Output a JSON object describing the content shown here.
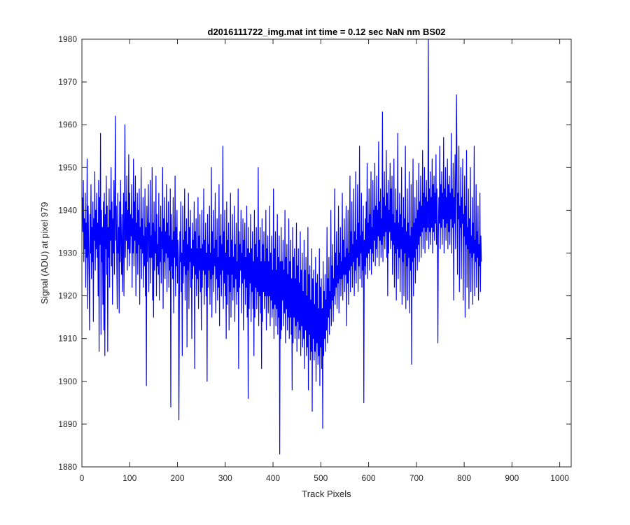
{
  "chart_data": {
    "type": "line",
    "title": "d2016111722_img.mat int time = 0.12 sec  NaN nm BS02",
    "xlabel": "Track Pixels",
    "ylabel": "Signal (ADU) at pixel 979",
    "xlim": [
      0,
      1024
    ],
    "ylim": [
      1880,
      1980
    ],
    "xticks": [
      0,
      100,
      200,
      300,
      400,
      500,
      600,
      700,
      800,
      900,
      1000
    ],
    "yticks": [
      1880,
      1890,
      1900,
      1910,
      1920,
      1930,
      1940,
      1950,
      1960,
      1970,
      1980
    ],
    "grid": false,
    "line_color": "#0000ff",
    "series": [
      {
        "name": "",
        "x_start": 1,
        "x_step": 1,
        "values": [
          1943,
          1935,
          1947,
          1928,
          1938,
          1931,
          1944,
          1922,
          1937,
          1929,
          1952,
          1917,
          1941,
          1933,
          1925,
          1912,
          1939,
          1930,
          1946,
          1924,
          1936,
          1928,
          1942,
          1914,
          1938,
          1933,
          1949,
          1926,
          1940,
          1931,
          1944,
          1929,
          1937,
          1920,
          1947,
          1907,
          1943,
          1932,
          1958,
          1911,
          1940,
          1928,
          1936,
          1918,
          1942,
          1912,
          1944,
          1906,
          1939,
          1931,
          1948,
          1925,
          1941,
          1907,
          1936,
          1929,
          1945,
          1922,
          1940,
          1933,
          1950,
          1927,
          1942,
          1918,
          1938,
          1930,
          1947,
          1925,
          1939,
          1962,
          1933,
          1941,
          1928,
          1917,
          1944,
          1930,
          1936,
          1916,
          1942,
          1928,
          1947,
          1933,
          1925,
          1939,
          1921,
          1931,
          1944,
          1920,
          1935,
          1960,
          1929,
          1942,
          1933,
          1948,
          1926,
          1940,
          1931,
          1953,
          1927,
          1944,
          1930,
          1939,
          1934,
          1946,
          1922,
          1938,
          1930,
          1952,
          1927,
          1942,
          1933,
          1948,
          1920,
          1937,
          1930,
          1944,
          1925,
          1940,
          1932,
          1945,
          1918,
          1936,
          1931,
          1950,
          1924,
          1938,
          1930,
          1943,
          1922,
          1934,
          1927,
          1945,
          1920,
          1936,
          1899,
          1941,
          1928,
          1935,
          1946,
          1921,
          1937,
          1929,
          1947,
          1923,
          1934,
          1929,
          1950,
          1919,
          1937,
          1915,
          1942,
          1926,
          1935,
          1930,
          1948,
          1920,
          1939,
          1927,
          1932,
          1925,
          1944,
          1919,
          1936,
          1928,
          1941,
          1923,
          1935,
          1931,
          1950,
          1917,
          1938,
          1928,
          1943,
          1924,
          1935,
          1930,
          1946,
          1921,
          1937,
          1929,
          1942,
          1922,
          1934,
          1926,
          1945,
          1894,
          1939,
          1927,
          1933,
          1924,
          1943,
          1916,
          1935,
          1929,
          1948,
          1920,
          1936,
          1927,
          1940,
          1923,
          1933,
          1929,
          1891,
          1918,
          1935,
          1928,
          1942,
          1921,
          1930,
          1906,
          1941,
          1923,
          1933,
          1927,
          1945,
          1919,
          1935,
          1925,
          1938,
          1908,
          1932,
          1926,
          1944,
          1917,
          1936,
          1928,
          1940,
          1922,
          1931,
          1910,
          1937,
          1924,
          1933,
          1927,
          1942,
          1903,
          1935,
          1925,
          1938,
          1920,
          1931,
          1924,
          1943,
          1917,
          1934,
          1926,
          1939,
          1921,
          1931,
          1912,
          1940,
          1922,
          1932,
          1926,
          1945,
          1918,
          1933,
          1925,
          1937,
          1920,
          1930,
          1900,
          1939,
          1922,
          1932,
          1926,
          1941,
          1918,
          1930,
          1924,
          1950,
          1915,
          1935,
          1925,
          1940,
          1921,
          1931,
          1927,
          1944,
          1916,
          1933,
          1924,
          1938,
          1919,
          1929,
          1922,
          1946,
          1913,
          1934,
          1925,
          1939,
          1920,
          1932,
          1926,
          1955,
          1917,
          1935,
          1923,
          1940,
          1920,
          1930,
          1910,
          1942,
          1918,
          1933,
          1925,
          1937,
          1912,
          1929,
          1921,
          1944,
          1915,
          1933,
          1925,
          1939,
          1919,
          1929,
          1922,
          1941,
          1914,
          1932,
          1924,
          1937,
          1918,
          1928,
          1921,
          1945,
          1903,
          1935,
          1922,
          1932,
          1926,
          1940,
          1916,
          1930,
          1923,
          1938,
          1912,
          1933,
          1924,
          1937,
          1918,
          1929,
          1922,
          1941,
          1915,
          1931,
          1896,
          1936,
          1917,
          1930,
          1923,
          1939,
          1914,
          1931,
          1921,
          1935,
          1917,
          1928,
          1906,
          1940,
          1915,
          1932,
          1922,
          1936,
          1917,
          1929,
          1921,
          1950,
          1913,
          1933,
          1920,
          1936,
          1916,
          1928,
          1903,
          1938,
          1914,
          1932,
          1921,
          1935,
          1917,
          1928,
          1920,
          1940,
          1912,
          1931,
          1920,
          1934,
          1916,
          1928,
          1920,
          1941,
          1913,
          1930,
          1919,
          1934,
          1915,
          1926,
          1917,
          1945,
          1910,
          1931,
          1918,
          1935,
          1913,
          1926,
          1917,
          1939,
          1911,
          1929,
          1915,
          1934,
          1883,
          1928,
          1910,
          1936,
          1912,
          1928,
          1919,
          1933,
          1913,
          1926,
          1916,
          1940,
          1909,
          1929,
          1917,
          1932,
          1912,
          1925,
          1915,
          1938,
          1910,
          1928,
          1915,
          1933,
          1911,
          1924,
          1898,
          1936,
          1909,
          1929,
          1915,
          1931,
          1910,
          1924,
          1913,
          1937,
          1907,
          1927,
          1914,
          1931,
          1910,
          1923,
          1912,
          1935,
          1906,
          1926,
          1913,
          1930,
          1908,
          1921,
          1910,
          1933,
          1903,
          1926,
          1912,
          1929,
          1906,
          1920,
          1908,
          1936,
          1898,
          1925,
          1911,
          1927,
          1905,
          1919,
          1907,
          1931,
          1893,
          1924,
          1910,
          1926,
          1905,
          1918,
          1907,
          1929,
          1900,
          1923,
          1909,
          1925,
          1904,
          1917,
          1906,
          1931,
          1899,
          1922,
          1908,
          1924,
          1903,
          1917,
          1889,
          1928,
          1906,
          1921,
          1910,
          1925,
          1907,
          1919,
          1912,
          1936,
          1909,
          1924,
          1915,
          1929,
          1911,
          1921,
          1917,
          1940,
          1913,
          1927,
          1919,
          1932,
          1914,
          1924,
          1920,
          1945,
          1918,
          1930,
          1922,
          1935,
          1917,
          1927,
          1923,
          1941,
          1916,
          1930,
          1924,
          1936,
          1920,
          1928,
          1924,
          1944,
          1919,
          1933,
          1925,
          1938,
          1921,
          1929,
          1925,
          1941,
          1913,
          1931,
          1923,
          1940,
          1918,
          1930,
          1926,
          1948,
          1921,
          1935,
          1927,
          1942,
          1922,
          1932,
          1928,
          1945,
          1920,
          1935,
          1926,
          1949,
          1923,
          1933,
          1929,
          1946,
          1921,
          1937,
          1927,
          1955,
          1924,
          1934,
          1930,
          1944,
          1922,
          1935,
          1926,
          1941,
          1895,
          1933,
          1927,
          1938,
          1925,
          1942,
          1929,
          1951,
          1924,
          1937,
          1930,
          1945,
          1926,
          1939,
          1931,
          1949,
          1925,
          1936,
          1930,
          1947,
          1928,
          1940,
          1933,
          1951,
          1927,
          1941,
          1931,
          1948,
          1929,
          1940,
          1934,
          1956,
          1927,
          1942,
          1933,
          1945,
          1929,
          1938,
          1932,
          1963,
          1928,
          1943,
          1934,
          1949,
          1931,
          1941,
          1935,
          1954,
          1929,
          1944,
          1920,
          1947,
          1930,
          1940,
          1935,
          1951,
          1931,
          1945,
          1933,
          1948,
          1925,
          1939,
          1932,
          1952,
          1922,
          1937,
          1930,
          1945,
          1919,
          1940,
          1931,
          1958,
          1924,
          1937,
          1929,
          1944,
          1921,
          1939,
          1931,
          1950,
          1918,
          1936,
          1928,
          1943,
          1920,
          1938,
          1930,
          1955,
          1917,
          1935,
          1927,
          1945,
          1919,
          1937,
          1929,
          1949,
          1916,
          1934,
          1926,
          1946,
          1904,
          1936,
          1928,
          1952,
          1920,
          1937,
          1929,
          1943,
          1923,
          1938,
          1931,
          1947,
          1926,
          1940,
          1932,
          1951,
          1928,
          1942,
          1934,
          1948,
          1929,
          1941,
          1935,
          1954,
          1931,
          1944,
          1936,
          1950,
          1930,
          1943,
          1935,
          1947,
          1933,
          1942,
          1936,
          1980,
          1931,
          1945,
          1935,
          1949,
          1932,
          1943,
          1936,
          1952,
          1930,
          1946,
          1935,
          1948,
          1933,
          1944,
          1937,
          1953,
          1932,
          1945,
          1936,
          1909,
          1934,
          1943,
          1937,
          1955,
          1931,
          1946,
          1936,
          1949,
          1932,
          1944,
          1938,
          1957,
          1930,
          1945,
          1936,
          1950,
          1933,
          1943,
          1937,
          1952,
          1931,
          1946,
          1935,
          1948,
          1932,
          1944,
          1938,
          1958,
          1930,
          1945,
          1936,
          1951,
          1919,
          1943,
          1937,
          1953,
          1931,
          1946,
          1967,
          1949,
          1925,
          1944,
          1938,
          1955,
          1921,
          1941,
          1936,
          1950,
          1924,
          1943,
          1937,
          1952,
          1919,
          1939,
          1934,
          1948,
          1915,
          1941,
          1932,
          1954,
          1922,
          1936,
          1931,
          1945,
          1917,
          1938,
          1930,
          1950,
          1921,
          1934,
          1929,
          1943,
          1918,
          1937,
          1930,
          1955,
          1920,
          1933,
          1928,
          1946,
          1922,
          1935,
          1929,
          1941,
          1919,
          1932,
          1927,
          1944,
          1921,
          1934,
          1928
        ]
      }
    ]
  }
}
